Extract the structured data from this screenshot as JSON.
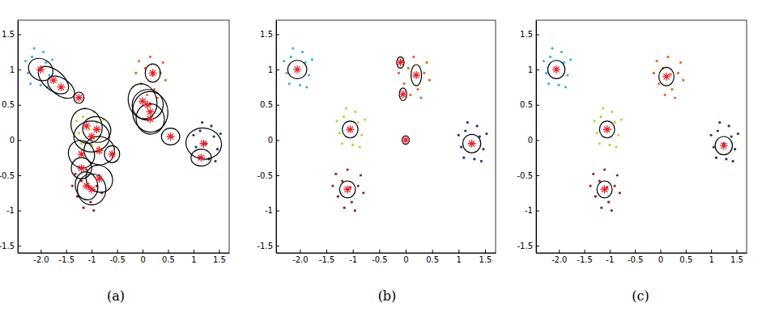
{
  "chart_data": [
    {
      "type": "scatter",
      "title": "(a)",
      "xlim": [
        -2.45,
        1.7
      ],
      "ylim": [
        -1.6,
        1.7
      ],
      "xticks": [
        {
          "value": -2,
          "label": "-2.0"
        },
        -1.5,
        -1,
        -0.5,
        0,
        0.5,
        1,
        1.5
      ],
      "yticks": [
        1.5,
        1,
        0.5,
        0,
        -0.5,
        -1,
        -1.5
      ],
      "series": [
        {
          "color": "#35b6d6",
          "x": [
            -2.05,
            -1.9,
            -2.17,
            -1.83,
            -2.25,
            -2.0,
            -2.13,
            -1.77,
            -2.3,
            -1.95,
            -2.2,
            -1.87
          ],
          "values": [
            1.0,
            1.1,
            1.18,
            0.92,
            0.95,
            0.78,
            1.3,
            1.14,
            1.12,
            1.25,
            0.8,
            0.75
          ]
        },
        {
          "color": "#e8641e",
          "x": [
            0.2,
            0.05,
            0.35,
            -0.03,
            0.23,
            0.4,
            -0.13,
            0.15,
            0.29,
            0.09,
            0.45,
            -0.07
          ],
          "values": [
            0.93,
            1.02,
            0.95,
            0.8,
            0.72,
            1.1,
            0.95,
            1.18,
            0.6,
            0.64,
            0.85,
            1.12
          ]
        },
        {
          "color": "#b8d430",
          "x": [
            -1.05,
            -0.9,
            -1.17,
            -0.83,
            -1.25,
            -1.0,
            -1.13,
            -0.77,
            -1.3,
            -0.95,
            -1.2,
            -0.87
          ],
          "values": [
            0.15,
            0.25,
            0.33,
            0.07,
            0.1,
            -0.07,
            0.45,
            0.29,
            0.27,
            0.4,
            -0.05,
            -0.1
          ]
        },
        {
          "color": "#a01818",
          "x": [
            -1.05,
            -1.2,
            -0.9,
            -1.28,
            -1.02,
            -0.85,
            -1.38,
            -1.1,
            -0.96,
            -1.16,
            -0.8,
            -1.32
          ],
          "values": [
            -0.67,
            -0.58,
            -0.65,
            -0.8,
            -0.88,
            -0.5,
            -0.65,
            -0.42,
            -1.0,
            -0.96,
            -0.75,
            -0.48
          ]
        },
        {
          "color": "#1a2f8a",
          "x": [
            1.25,
            1.4,
            1.13,
            1.47,
            1.05,
            1.3,
            1.17,
            1.53,
            1.0,
            1.35,
            1.1,
            1.43
          ],
          "values": [
            -0.05,
            0.05,
            0.13,
            -0.13,
            -0.1,
            -0.27,
            0.25,
            0.09,
            0.07,
            0.2,
            -0.25,
            -0.3
          ]
        }
      ],
      "ellipses": [
        {
          "cx": -2.0,
          "cy": 1.0,
          "rx": 0.25,
          "ry": 0.15,
          "angle": -30
        },
        {
          "cx": -1.75,
          "cy": 0.85,
          "rx": 0.35,
          "ry": 0.14,
          "angle": -40
        },
        {
          "cx": -1.6,
          "cy": 0.75,
          "rx": 0.3,
          "ry": 0.12,
          "angle": -35
        },
        {
          "cx": -1.1,
          "cy": 0.2,
          "rx": 0.3,
          "ry": 0.25,
          "angle": 20
        },
        {
          "cx": -1.0,
          "cy": 0.05,
          "rx": 0.35,
          "ry": 0.22,
          "angle": 0
        },
        {
          "cx": -0.85,
          "cy": -0.15,
          "rx": 0.3,
          "ry": 0.2,
          "angle": -10
        },
        {
          "cx": -1.2,
          "cy": -0.2,
          "rx": 0.25,
          "ry": 0.2,
          "angle": 30
        },
        {
          "cx": -0.9,
          "cy": 0.15,
          "rx": 0.28,
          "ry": 0.18,
          "angle": -20
        },
        {
          "cx": -1.25,
          "cy": 0.6,
          "rx": 0.1,
          "ry": 0.08,
          "angle": 0
        },
        {
          "cx": -0.6,
          "cy": -0.2,
          "rx": 0.15,
          "ry": 0.12,
          "angle": 0
        },
        {
          "cx": -1.1,
          "cy": -0.65,
          "rx": 0.22,
          "ry": 0.2,
          "angle": 10
        },
        {
          "cx": -1.0,
          "cy": -0.7,
          "rx": 0.28,
          "ry": 0.22,
          "angle": 0
        },
        {
          "cx": -0.85,
          "cy": -0.55,
          "rx": 0.25,
          "ry": 0.2,
          "angle": 40
        },
        {
          "cx": -1.2,
          "cy": -0.4,
          "rx": 0.2,
          "ry": 0.15,
          "angle": 0
        },
        {
          "cx": 0.1,
          "cy": 0.5,
          "rx": 0.3,
          "ry": 0.22,
          "angle": -70
        },
        {
          "cx": 0.15,
          "cy": 0.3,
          "rx": 0.3,
          "ry": 0.2,
          "angle": -80
        },
        {
          "cx": 0.0,
          "cy": 0.55,
          "rx": 0.35,
          "ry": 0.2,
          "angle": -75
        },
        {
          "cx": 0.2,
          "cy": 0.95,
          "rx": 0.15,
          "ry": 0.13,
          "angle": 0
        },
        {
          "cx": 0.15,
          "cy": 0.4,
          "rx": 0.4,
          "ry": 0.25,
          "angle": -85
        },
        {
          "cx": 0.55,
          "cy": 0.05,
          "rx": 0.18,
          "ry": 0.12,
          "angle": 0
        },
        {
          "cx": 1.2,
          "cy": -0.05,
          "rx": 0.35,
          "ry": 0.22,
          "angle": -10
        },
        {
          "cx": 1.15,
          "cy": -0.25,
          "rx": 0.2,
          "ry": 0.12,
          "angle": 0
        }
      ]
    },
    {
      "type": "scatter",
      "title": "(b)",
      "xlim": [
        -2.45,
        1.7
      ],
      "ylim": [
        -1.6,
        1.7
      ],
      "xticks": [
        {
          "value": -2,
          "label": "-2.0"
        },
        -1.5,
        -1,
        -0.5,
        0,
        0.5,
        1,
        1.5
      ],
      "yticks": [
        1.5,
        1,
        0.5,
        0,
        -0.5,
        -1,
        -1.5
      ],
      "series": [
        {
          "color": "#35b6d6",
          "x": [
            -2.05,
            -1.9,
            -2.17,
            -1.83,
            -2.25,
            -2.0,
            -2.13,
            -1.77,
            -2.3,
            -1.95,
            -2.2,
            -1.87
          ],
          "values": [
            1.0,
            1.1,
            1.18,
            0.92,
            0.95,
            0.78,
            1.3,
            1.14,
            1.12,
            1.25,
            0.8,
            0.75
          ]
        },
        {
          "color": "#e8641e",
          "x": [
            0.2,
            0.05,
            0.35,
            -0.03,
            0.23,
            0.4,
            -0.13,
            0.15,
            0.29,
            0.09,
            0.45,
            -0.07
          ],
          "values": [
            0.93,
            1.02,
            0.95,
            0.8,
            0.72,
            1.1,
            0.95,
            1.18,
            0.6,
            0.64,
            0.85,
            1.12
          ]
        },
        {
          "color": "#b8d430",
          "x": [
            -1.05,
            -0.9,
            -1.17,
            -0.83,
            -1.25,
            -1.0,
            -1.13,
            -0.77,
            -1.3,
            -0.95,
            -1.2,
            -0.87
          ],
          "values": [
            0.15,
            0.25,
            0.33,
            0.07,
            0.1,
            -0.07,
            0.45,
            0.29,
            0.27,
            0.4,
            -0.05,
            -0.1
          ]
        },
        {
          "color": "#a01818",
          "x": [
            -1.05,
            -1.2,
            -0.9,
            -1.28,
            -1.02,
            -0.85,
            -1.38,
            -1.1,
            -0.96,
            -1.16,
            -0.8,
            -1.32
          ],
          "values": [
            -0.67,
            -0.58,
            -0.65,
            -0.8,
            -0.88,
            -0.5,
            -0.65,
            -0.42,
            -1.0,
            -0.96,
            -0.75,
            -0.48
          ]
        },
        {
          "color": "#1a2f8a",
          "x": [
            1.25,
            1.4,
            1.13,
            1.47,
            1.05,
            1.3,
            1.17,
            1.53,
            1.0,
            1.35,
            1.1,
            1.43
          ],
          "values": [
            -0.05,
            0.05,
            0.13,
            -0.13,
            -0.1,
            -0.27,
            0.25,
            0.09,
            0.07,
            0.2,
            -0.25,
            -0.3
          ]
        }
      ],
      "ellipses": [
        {
          "cx": -2.05,
          "cy": 1.0,
          "rx": 0.18,
          "ry": 0.13,
          "angle": 0
        },
        {
          "cx": -1.05,
          "cy": 0.15,
          "rx": 0.15,
          "ry": 0.12,
          "angle": 0
        },
        {
          "cx": -1.1,
          "cy": -0.7,
          "rx": 0.15,
          "ry": 0.12,
          "angle": 0
        },
        {
          "cx": 1.25,
          "cy": -0.05,
          "rx": 0.17,
          "ry": 0.13,
          "angle": 0
        },
        {
          "cx": -0.1,
          "cy": 1.1,
          "rx": 0.07,
          "ry": 0.08,
          "angle": 0
        },
        {
          "cx": -0.05,
          "cy": 0.65,
          "rx": 0.07,
          "ry": 0.09,
          "angle": 0
        },
        {
          "cx": 0.2,
          "cy": 0.92,
          "rx": 0.1,
          "ry": 0.15,
          "angle": 0
        },
        {
          "cx": 0.0,
          "cy": 0.0,
          "rx": 0.07,
          "ry": 0.06,
          "angle": 0
        }
      ]
    },
    {
      "type": "scatter",
      "title": "(c)",
      "xlim": [
        -2.45,
        1.7
      ],
      "ylim": [
        -1.6,
        1.7
      ],
      "xticks": [
        {
          "value": -2,
          "label": "-2.0"
        },
        -1.5,
        -1,
        -0.5,
        0,
        0.5,
        1,
        1.5
      ],
      "yticks": [
        1.5,
        1,
        0.5,
        0,
        -0.5,
        -1,
        -1.5
      ],
      "series": [
        {
          "color": "#35b6d6",
          "x": [
            -2.05,
            -1.9,
            -2.17,
            -1.83,
            -2.25,
            -2.0,
            -2.13,
            -1.77,
            -2.3,
            -1.95,
            -2.2,
            -1.87
          ],
          "values": [
            1.0,
            1.1,
            1.18,
            0.92,
            0.95,
            0.78,
            1.3,
            1.14,
            1.12,
            1.25,
            0.8,
            0.75
          ]
        },
        {
          "color": "#e8641e",
          "x": [
            0.2,
            0.05,
            0.35,
            -0.03,
            0.23,
            0.4,
            -0.13,
            0.15,
            0.29,
            0.09,
            0.45,
            -0.07
          ],
          "values": [
            0.93,
            1.02,
            0.95,
            0.8,
            0.72,
            1.1,
            0.95,
            1.18,
            0.6,
            0.64,
            0.85,
            1.12
          ]
        },
        {
          "color": "#b8d430",
          "x": [
            -1.05,
            -0.9,
            -1.17,
            -0.83,
            -1.25,
            -1.0,
            -1.13,
            -0.77,
            -1.3,
            -0.95,
            -1.2,
            -0.87
          ],
          "values": [
            0.15,
            0.25,
            0.33,
            0.07,
            0.1,
            -0.07,
            0.45,
            0.29,
            0.27,
            0.4,
            -0.05,
            -0.1
          ]
        },
        {
          "color": "#a01818",
          "x": [
            -1.05,
            -1.2,
            -0.9,
            -1.28,
            -1.02,
            -0.85,
            -1.38,
            -1.1,
            -0.96,
            -1.16,
            -0.8,
            -1.32
          ],
          "values": [
            -0.67,
            -0.58,
            -0.65,
            -0.8,
            -0.88,
            -0.5,
            -0.65,
            -0.42,
            -1.0,
            -0.96,
            -0.75,
            -0.48
          ]
        },
        {
          "color": "#1a2f8a",
          "x": [
            1.25,
            1.4,
            1.13,
            1.47,
            1.05,
            1.3,
            1.17,
            1.53,
            1.0,
            1.35,
            1.1,
            1.43
          ],
          "values": [
            -0.05,
            0.05,
            0.13,
            -0.13,
            -0.1,
            -0.27,
            0.25,
            0.09,
            0.07,
            0.2,
            -0.25,
            -0.3
          ]
        }
      ],
      "ellipses": [
        {
          "cx": -2.05,
          "cy": 1.0,
          "rx": 0.17,
          "ry": 0.13,
          "angle": 0
        },
        {
          "cx": 0.12,
          "cy": 0.9,
          "rx": 0.15,
          "ry": 0.13,
          "angle": 0
        },
        {
          "cx": -1.05,
          "cy": 0.15,
          "rx": 0.15,
          "ry": 0.12,
          "angle": 0
        },
        {
          "cx": -1.1,
          "cy": -0.7,
          "rx": 0.15,
          "ry": 0.12,
          "angle": 0
        },
        {
          "cx": 1.25,
          "cy": -0.08,
          "rx": 0.17,
          "ry": 0.13,
          "angle": 0
        }
      ]
    }
  ]
}
